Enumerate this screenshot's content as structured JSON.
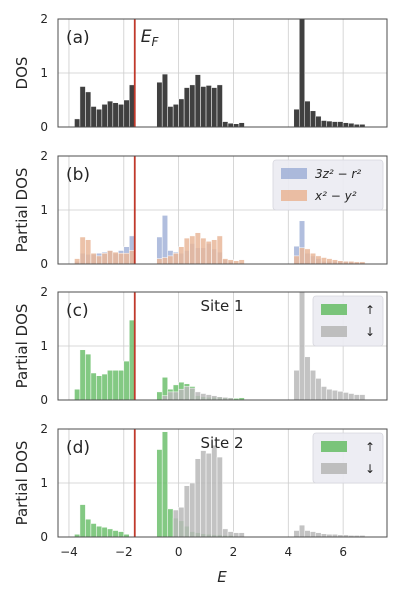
{
  "xlabel": "E",
  "xlim": [
    -4.4,
    7.6
  ],
  "xticks": [
    -4,
    -2,
    0,
    2,
    4,
    6
  ],
  "xtick_labels": [
    "−4",
    "−2",
    "0",
    "2",
    "4",
    "6"
  ],
  "ef": -1.6,
  "ef_label": "E_F",
  "chart_data": [
    {
      "type": "bar",
      "panel_label": "(a)",
      "ylabel": "DOS",
      "ylim": [
        0,
        2
      ],
      "yticks": [
        0,
        1,
        2
      ],
      "grid": true,
      "legend": [],
      "series": [
        {
          "name": "",
          "color": "#404040",
          "bins": [
            [
              -3.8,
              0.15
            ],
            [
              -3.6,
              0.75
            ],
            [
              -3.4,
              0.65
            ],
            [
              -3.2,
              0.38
            ],
            [
              -3.0,
              0.33
            ],
            [
              -2.8,
              0.42
            ],
            [
              -2.6,
              0.48
            ],
            [
              -2.4,
              0.45
            ],
            [
              -2.2,
              0.42
            ],
            [
              -2.0,
              0.5
            ],
            [
              -1.8,
              0.78
            ],
            [
              -0.8,
              0.83
            ],
            [
              -0.6,
              0.98
            ],
            [
              -0.4,
              0.38
            ],
            [
              -0.2,
              0.42
            ],
            [
              0.0,
              0.52
            ],
            [
              0.2,
              0.73
            ],
            [
              0.4,
              0.78
            ],
            [
              0.6,
              0.97
            ],
            [
              0.8,
              0.75
            ],
            [
              1.0,
              0.77
            ],
            [
              1.2,
              0.73
            ],
            [
              1.4,
              0.78
            ],
            [
              1.6,
              0.1
            ],
            [
              1.8,
              0.07
            ],
            [
              2.0,
              0.06
            ],
            [
              2.2,
              0.08
            ],
            [
              4.2,
              0.33
            ],
            [
              4.4,
              2.0
            ],
            [
              4.6,
              0.48
            ],
            [
              4.8,
              0.3
            ],
            [
              5.0,
              0.2
            ],
            [
              5.2,
              0.12
            ],
            [
              5.4,
              0.11
            ],
            [
              5.6,
              0.1
            ],
            [
              5.8,
              0.1
            ],
            [
              6.0,
              0.08
            ],
            [
              6.2,
              0.07
            ],
            [
              6.4,
              0.05
            ],
            [
              6.6,
              0.05
            ]
          ]
        }
      ]
    },
    {
      "type": "bar",
      "panel_label": "(b)",
      "ylabel": "Partial DOS",
      "ylim": [
        0,
        2
      ],
      "yticks": [
        0,
        1,
        2
      ],
      "grid": true,
      "legend": [
        {
          "label": "3z² − r²",
          "color": "#a3b3d8"
        },
        {
          "label": "x² − y²",
          "color": "#e9b79a"
        }
      ],
      "series": [
        {
          "name": "3z² − r²",
          "color": "#a3b3d8",
          "bins": [
            [
              -3.8,
              0.05
            ],
            [
              -3.6,
              0.2
            ],
            [
              -3.4,
              0.18
            ],
            [
              -3.2,
              0.18
            ],
            [
              -3.0,
              0.2
            ],
            [
              -2.8,
              0.22
            ],
            [
              -2.6,
              0.25
            ],
            [
              -2.4,
              0.2
            ],
            [
              -2.2,
              0.25
            ],
            [
              -2.0,
              0.32
            ],
            [
              -1.8,
              0.52
            ],
            [
              -0.8,
              0.5
            ],
            [
              -0.6,
              0.9
            ],
            [
              -0.4,
              0.25
            ],
            [
              -0.2,
              0.22
            ],
            [
              0.0,
              0.2
            ],
            [
              0.2,
              0.25
            ],
            [
              0.4,
              0.38
            ],
            [
              0.6,
              0.3
            ],
            [
              0.8,
              0.3
            ],
            [
              1.0,
              0.38
            ],
            [
              1.2,
              0.28
            ],
            [
              1.4,
              0.22
            ],
            [
              1.6,
              0.08
            ],
            [
              1.8,
              0.05
            ],
            [
              4.2,
              0.33
            ],
            [
              4.4,
              0.8
            ],
            [
              4.6,
              0.2
            ],
            [
              4.8,
              0.15
            ],
            [
              5.0,
              0.1
            ],
            [
              5.2,
              0.05
            ],
            [
              5.4,
              0.05
            ],
            [
              5.6,
              0.05
            ],
            [
              5.8,
              0.05
            ],
            [
              6.0,
              0.05
            ],
            [
              6.2,
              0.04
            ],
            [
              6.4,
              0.03
            ],
            [
              6.6,
              0.03
            ]
          ]
        },
        {
          "name": "x² − y²",
          "color": "#e9b79a",
          "bins": [
            [
              -3.8,
              0.1
            ],
            [
              -3.6,
              0.5
            ],
            [
              -3.4,
              0.45
            ],
            [
              -3.2,
              0.2
            ],
            [
              -3.0,
              0.15
            ],
            [
              -2.8,
              0.2
            ],
            [
              -2.6,
              0.25
            ],
            [
              -2.4,
              0.22
            ],
            [
              -2.2,
              0.2
            ],
            [
              -2.0,
              0.2
            ],
            [
              -1.8,
              0.25
            ],
            [
              -0.8,
              0.1
            ],
            [
              -0.6,
              0.12
            ],
            [
              -0.4,
              0.15
            ],
            [
              -0.2,
              0.2
            ],
            [
              0.0,
              0.32
            ],
            [
              0.2,
              0.48
            ],
            [
              0.4,
              0.52
            ],
            [
              0.6,
              0.58
            ],
            [
              0.8,
              0.48
            ],
            [
              1.0,
              0.42
            ],
            [
              1.2,
              0.45
            ],
            [
              1.4,
              0.52
            ],
            [
              1.6,
              0.1
            ],
            [
              1.8,
              0.08
            ],
            [
              2.0,
              0.06
            ],
            [
              2.2,
              0.08
            ],
            [
              4.2,
              0.15
            ],
            [
              4.4,
              0.3
            ],
            [
              4.6,
              0.28
            ],
            [
              4.8,
              0.2
            ],
            [
              5.0,
              0.15
            ],
            [
              5.2,
              0.12
            ],
            [
              5.4,
              0.1
            ],
            [
              5.6,
              0.08
            ],
            [
              5.8,
              0.06
            ],
            [
              6.0,
              0.05
            ],
            [
              6.2,
              0.05
            ],
            [
              6.4,
              0.04
            ],
            [
              6.6,
              0.04
            ]
          ]
        }
      ]
    },
    {
      "type": "bar",
      "panel_label": "(c)",
      "site_label": "Site 1",
      "ylabel": "Partial DOS",
      "ylim": [
        0,
        2
      ],
      "yticks": [
        0,
        1,
        2
      ],
      "grid": true,
      "legend": [
        {
          "label": "↑",
          "color": "#6dbf6d"
        },
        {
          "label": "↓",
          "color": "#b8b8b8"
        }
      ],
      "series": [
        {
          "name": "↑",
          "color": "#6dbf6d",
          "bins": [
            [
              -3.8,
              0.2
            ],
            [
              -3.6,
              0.93
            ],
            [
              -3.4,
              0.85
            ],
            [
              -3.2,
              0.5
            ],
            [
              -3.0,
              0.45
            ],
            [
              -2.8,
              0.48
            ],
            [
              -2.6,
              0.55
            ],
            [
              -2.4,
              0.55
            ],
            [
              -2.2,
              0.55
            ],
            [
              -2.0,
              0.72
            ],
            [
              -1.8,
              1.48
            ],
            [
              -0.8,
              0.15
            ],
            [
              -0.6,
              0.42
            ],
            [
              -0.4,
              0.2
            ],
            [
              -0.2,
              0.28
            ],
            [
              0.0,
              0.33
            ],
            [
              0.2,
              0.3
            ],
            [
              0.4,
              0.25
            ],
            [
              0.6,
              0.08
            ],
            [
              0.8,
              0.06
            ],
            [
              1.0,
              0.05
            ],
            [
              1.2,
              0.05
            ],
            [
              1.4,
              0.05
            ],
            [
              1.6,
              0.04
            ],
            [
              1.8,
              0.04
            ],
            [
              2.0,
              0.03
            ],
            [
              2.2,
              0.04
            ]
          ]
        },
        {
          "name": "↓",
          "color": "#b8b8b8",
          "bins": [
            [
              -0.6,
              0.08
            ],
            [
              -0.4,
              0.15
            ],
            [
              -0.2,
              0.15
            ],
            [
              0.0,
              0.2
            ],
            [
              0.2,
              0.25
            ],
            [
              0.4,
              0.22
            ],
            [
              0.6,
              0.15
            ],
            [
              0.8,
              0.12
            ],
            [
              1.0,
              0.1
            ],
            [
              1.2,
              0.08
            ],
            [
              1.4,
              0.06
            ],
            [
              1.6,
              0.05
            ],
            [
              1.8,
              0.04
            ],
            [
              4.2,
              0.55
            ],
            [
              4.4,
              2.0
            ],
            [
              4.6,
              0.8
            ],
            [
              4.8,
              0.55
            ],
            [
              5.0,
              0.4
            ],
            [
              5.2,
              0.25
            ],
            [
              5.4,
              0.2
            ],
            [
              5.6,
              0.18
            ],
            [
              5.8,
              0.16
            ],
            [
              6.0,
              0.14
            ],
            [
              6.2,
              0.12
            ],
            [
              6.4,
              0.1
            ],
            [
              6.6,
              0.1
            ]
          ]
        }
      ]
    },
    {
      "type": "bar",
      "panel_label": "(d)",
      "site_label": "Site 2",
      "ylabel": "Partial DOS",
      "ylim": [
        0,
        2
      ],
      "yticks": [
        0,
        1,
        2
      ],
      "grid": true,
      "legend": [
        {
          "label": "↑",
          "color": "#6dbf6d"
        },
        {
          "label": "↓",
          "color": "#b8b8b8"
        }
      ],
      "series": [
        {
          "name": "↑",
          "color": "#6dbf6d",
          "bins": [
            [
              -3.8,
              0.05
            ],
            [
              -3.6,
              0.6
            ],
            [
              -3.4,
              0.33
            ],
            [
              -3.2,
              0.25
            ],
            [
              -3.0,
              0.2
            ],
            [
              -2.8,
              0.18
            ],
            [
              -2.6,
              0.15
            ],
            [
              -2.4,
              0.12
            ],
            [
              -2.2,
              0.1
            ],
            [
              -2.0,
              0.05
            ],
            [
              -0.8,
              1.62
            ],
            [
              -0.6,
              1.95
            ],
            [
              -0.4,
              0.52
            ],
            [
              -0.2,
              0.35
            ],
            [
              0.0,
              0.3
            ],
            [
              0.2,
              0.2
            ],
            [
              0.4,
              0.1
            ],
            [
              0.6,
              0.08
            ],
            [
              0.8,
              0.06
            ],
            [
              1.0,
              0.05
            ],
            [
              1.2,
              0.04
            ],
            [
              1.4,
              0.04
            ],
            [
              1.6,
              0.03
            ],
            [
              1.8,
              0.03
            ]
          ]
        },
        {
          "name": "↓",
          "color": "#b8b8b8",
          "bins": [
            [
              -0.2,
              0.5
            ],
            [
              0.0,
              0.55
            ],
            [
              0.2,
              0.95
            ],
            [
              0.4,
              1.0
            ],
            [
              0.6,
              1.45
            ],
            [
              0.8,
              1.6
            ],
            [
              1.0,
              1.55
            ],
            [
              1.2,
              1.7
            ],
            [
              1.4,
              1.48
            ],
            [
              1.6,
              0.15
            ],
            [
              1.8,
              0.1
            ],
            [
              2.0,
              0.08
            ],
            [
              2.2,
              0.08
            ],
            [
              4.2,
              0.12
            ],
            [
              4.4,
              0.22
            ],
            [
              4.6,
              0.12
            ],
            [
              4.8,
              0.1
            ],
            [
              5.0,
              0.08
            ],
            [
              5.2,
              0.06
            ],
            [
              5.4,
              0.05
            ],
            [
              5.6,
              0.05
            ],
            [
              5.8,
              0.04
            ],
            [
              6.0,
              0.04
            ],
            [
              6.2,
              0.03
            ],
            [
              6.4,
              0.03
            ],
            [
              6.6,
              0.03
            ]
          ]
        }
      ]
    }
  ]
}
